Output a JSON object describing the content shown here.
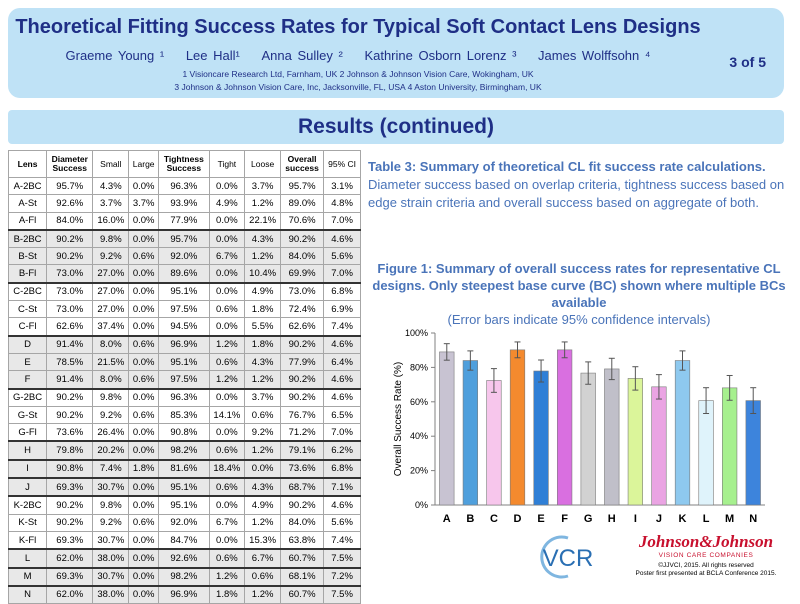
{
  "header": {
    "title": "Theoretical Fitting Success Rates for Typical Soft Contact Lens Designs",
    "authors": [
      "Graeme Young ¹",
      "Lee Hall¹",
      "Anna Sulley ²",
      "Kathrine Osborn Lorenz ³",
      "James Wolffsohn ⁴"
    ],
    "affiliation_line1": "1 Visioncare Research Ltd, Farnham, UK      2 Johnson & Johnson Vision Care, Wokingham, UK",
    "affiliation_line2": "3 Johnson & Johnson Vision Care, Inc, Jacksonville, FL, USA      4 Aston University, Birmingham, UK",
    "page_indicator": "3 of 5"
  },
  "section_title": "Results (continued)",
  "table": {
    "headers": {
      "lens": "Lens",
      "diameter_success": [
        "Diameter",
        "Success"
      ],
      "small": "Small",
      "large": "Large",
      "tightness_success": [
        "Tightness",
        "Success"
      ],
      "tight": "Tight",
      "loose": "Loose",
      "overall_success": [
        "Overall",
        "success"
      ],
      "ci": "95% CI"
    },
    "rows": [
      [
        "A-2BC",
        "95.7%",
        "4.3%",
        "0.0%",
        "96.3%",
        "0.0%",
        "3.7%",
        "95.7%",
        "3.1%"
      ],
      [
        "A-St",
        "92.6%",
        "3.7%",
        "3.7%",
        "93.9%",
        "4.9%",
        "1.2%",
        "89.0%",
        "4.8%"
      ],
      [
        "A-Fl",
        "84.0%",
        "16.0%",
        "0.0%",
        "77.9%",
        "0.0%",
        "22.1%",
        "70.6%",
        "7.0%"
      ],
      [
        "B-2BC",
        "90.2%",
        "9.8%",
        "0.0%",
        "95.7%",
        "0.0%",
        "4.3%",
        "90.2%",
        "4.6%"
      ],
      [
        "B-St",
        "90.2%",
        "9.2%",
        "0.6%",
        "92.0%",
        "6.7%",
        "1.2%",
        "84.0%",
        "5.6%"
      ],
      [
        "B-Fl",
        "73.0%",
        "27.0%",
        "0.0%",
        "89.6%",
        "0.0%",
        "10.4%",
        "69.9%",
        "7.0%"
      ],
      [
        "C-2BC",
        "73.0%",
        "27.0%",
        "0.0%",
        "95.1%",
        "0.0%",
        "4.9%",
        "73.0%",
        "6.8%"
      ],
      [
        "C-St",
        "73.0%",
        "27.0%",
        "0.0%",
        "97.5%",
        "0.6%",
        "1.8%",
        "72.4%",
        "6.9%"
      ],
      [
        "C-Fl",
        "62.6%",
        "37.4%",
        "0.0%",
        "94.5%",
        "0.0%",
        "5.5%",
        "62.6%",
        "7.4%"
      ],
      [
        "D",
        "91.4%",
        "8.0%",
        "0.6%",
        "96.9%",
        "1.2%",
        "1.8%",
        "90.2%",
        "4.6%"
      ],
      [
        "E",
        "78.5%",
        "21.5%",
        "0.0%",
        "95.1%",
        "0.6%",
        "4.3%",
        "77.9%",
        "6.4%"
      ],
      [
        "F",
        "91.4%",
        "8.0%",
        "0.6%",
        "97.5%",
        "1.2%",
        "1.2%",
        "90.2%",
        "4.6%"
      ],
      [
        "G-2BC",
        "90.2%",
        "9.8%",
        "0.0%",
        "96.3%",
        "0.0%",
        "3.7%",
        "90.2%",
        "4.6%"
      ],
      [
        "G-St",
        "90.2%",
        "9.2%",
        "0.6%",
        "85.3%",
        "14.1%",
        "0.6%",
        "76.7%",
        "6.5%"
      ],
      [
        "G-Fl",
        "73.6%",
        "26.4%",
        "0.0%",
        "90.8%",
        "0.0%",
        "9.2%",
        "71.2%",
        "7.0%"
      ],
      [
        "H",
        "79.8%",
        "20.2%",
        "0.0%",
        "98.2%",
        "0.6%",
        "1.2%",
        "79.1%",
        "6.2%"
      ],
      [
        "I",
        "90.8%",
        "7.4%",
        "1.8%",
        "81.6%",
        "18.4%",
        "0.0%",
        "73.6%",
        "6.8%"
      ],
      [
        "J",
        "69.3%",
        "30.7%",
        "0.0%",
        "95.1%",
        "0.6%",
        "4.3%",
        "68.7%",
        "7.1%"
      ],
      [
        "K-2BC",
        "90.2%",
        "9.8%",
        "0.0%",
        "95.1%",
        "0.0%",
        "4.9%",
        "90.2%",
        "4.6%"
      ],
      [
        "K-St",
        "90.2%",
        "9.2%",
        "0.6%",
        "92.0%",
        "6.7%",
        "1.2%",
        "84.0%",
        "5.6%"
      ],
      [
        "K-Fl",
        "69.3%",
        "30.7%",
        "0.0%",
        "84.7%",
        "0.0%",
        "15.3%",
        "63.8%",
        "7.4%"
      ],
      [
        "L",
        "62.0%",
        "38.0%",
        "0.0%",
        "92.6%",
        "0.6%",
        "6.7%",
        "60.7%",
        "7.5%"
      ],
      [
        "M",
        "69.3%",
        "30.7%",
        "0.0%",
        "98.2%",
        "1.2%",
        "0.6%",
        "68.1%",
        "7.2%"
      ],
      [
        "N",
        "62.0%",
        "38.0%",
        "0.0%",
        "96.9%",
        "1.8%",
        "1.2%",
        "60.7%",
        "7.5%"
      ]
    ]
  },
  "table_caption": {
    "title": "Table 3: Summary of theoretical CL fit success rate calculations.",
    "body": "Diameter success based on overlap criteria, tightness success based on edge strain criteria and overall success based on aggregate of both."
  },
  "figure_caption": {
    "title": "Figure 1:  Summary of overall success rates for representative CL designs.  Only steepest base curve (BC) shown where multiple BCs available",
    "note": "(Error bars indicate 95% confidence intervals)"
  },
  "chart_data": {
    "type": "bar",
    "categories": [
      "A",
      "B",
      "C",
      "D",
      "E",
      "F",
      "G",
      "H",
      "I",
      "J",
      "K",
      "L",
      "M",
      "N"
    ],
    "values": [
      89.0,
      84.0,
      72.4,
      90.2,
      77.9,
      90.2,
      76.7,
      79.1,
      73.6,
      68.7,
      84.0,
      60.7,
      68.1,
      60.7
    ],
    "errors": [
      4.8,
      5.6,
      6.9,
      4.6,
      6.4,
      4.6,
      6.5,
      6.2,
      6.8,
      7.1,
      5.6,
      7.5,
      7.2,
      7.5
    ],
    "colors": [
      "#c8c3d2",
      "#4f9fdc",
      "#f7c6ec",
      "#f48a2e",
      "#2f7fd6",
      "#d96fe0",
      "#d2d2d2",
      "#c0bfc9",
      "#dbf59a",
      "#eaa4e3",
      "#8ec9ef",
      "#dff3fb",
      "#a6f08e",
      "#3d84dc"
    ],
    "ylabel": "Overall Success Rate (%)",
    "ylim": [
      0,
      100
    ],
    "yticks": [
      "0%",
      "20%",
      "40%",
      "60%",
      "80%",
      "100%"
    ],
    "grid": false
  },
  "footer": {
    "vcr_logo": "VCR",
    "jj_brand": "Johnson&Johnson",
    "jj_sub": "VISION CARE COMPANIES",
    "copyright": "©JJVCI, 2015.  All rights reserved",
    "presented": "Poster first presented at BCLA Conference 2015."
  }
}
